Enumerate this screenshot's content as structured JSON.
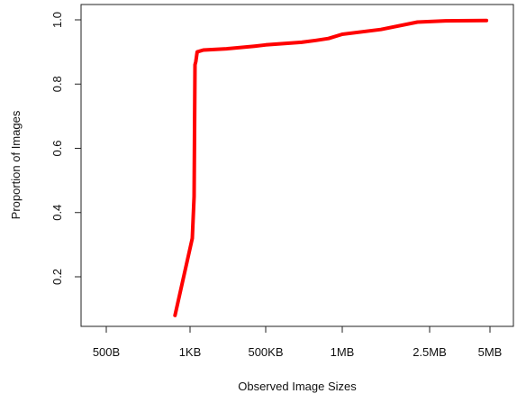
{
  "chart_data": {
    "type": "line",
    "title": "",
    "xlabel": "Observed Image Sizes",
    "ylabel": "Proportion of Images",
    "x_tick_labels": [
      "500B",
      "1KB",
      "500KB",
      "1MB",
      "2.5MB",
      "5MB"
    ],
    "y_ticks": [
      0.2,
      0.4,
      0.6,
      0.8,
      1.0
    ],
    "y_tick_labels": [
      "0.2",
      "0.4",
      "0.6",
      "0.8",
      "1.0"
    ],
    "ylim": [
      0.05,
      1.03
    ],
    "grid": false,
    "legend": "none",
    "series": [
      {
        "color": "#ff0000",
        "points": [
          {
            "x": "900B",
            "y": 0.08
          },
          {
            "x": "1.2KB",
            "y": 0.32
          },
          {
            "x": "1.4KB",
            "y": 0.45
          },
          {
            "x": "1.5KB",
            "y": 0.86
          },
          {
            "x": "1.6KB",
            "y": 0.87
          },
          {
            "x": "1.8KB",
            "y": 0.9
          },
          {
            "x": "3KB",
            "y": 0.906
          },
          {
            "x": "20KB",
            "y": 0.91
          },
          {
            "x": "200KB",
            "y": 0.918
          },
          {
            "x": "500KB",
            "y": 0.922
          },
          {
            "x": "700KB",
            "y": 0.93
          },
          {
            "x": "800KB",
            "y": 0.936
          },
          {
            "x": "900KB",
            "y": 0.942
          },
          {
            "x": "1MB",
            "y": 0.955
          },
          {
            "x": "1.5MB",
            "y": 0.97
          },
          {
            "x": "2.2MB",
            "y": 0.993
          },
          {
            "x": "3MB",
            "y": 0.997
          },
          {
            "x": "4.8MB",
            "y": 0.998
          }
        ]
      }
    ]
  }
}
